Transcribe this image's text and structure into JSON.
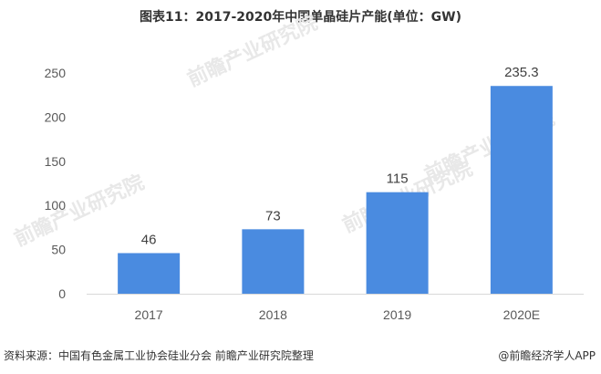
{
  "page": {
    "title": "图表11：2017-2020年中国单晶硅片产能(单位：GW)",
    "source": "资料来源：中国有色金属工业协会硅业分会 前瞻产业研究院整理",
    "brand": "@前瞻经济学人APP",
    "watermark": "前瞻产业研究院"
  },
  "colors": {
    "bar": "#4a8be0",
    "text": "#333333"
  },
  "chart_data": {
    "type": "bar",
    "title": "图表11：2017-2020年中国单晶硅片产能(单位：GW)",
    "categories": [
      "2017",
      "2018",
      "2019",
      "2020E"
    ],
    "values": [
      46,
      73,
      115,
      235.3
    ],
    "value_labels": [
      "46",
      "73",
      "115",
      "235.3"
    ],
    "yticks": [
      "0",
      "50",
      "100",
      "150",
      "200",
      "250"
    ],
    "ylim": [
      0,
      250
    ],
    "grid": false,
    "legend": "none"
  }
}
